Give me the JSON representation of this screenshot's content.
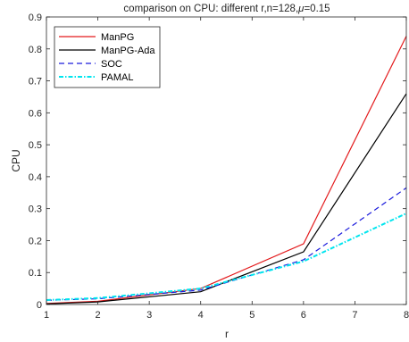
{
  "chart_data": {
    "type": "line",
    "title_prefix": "comparison on CPU: different r,n=128,",
    "title_mu": "μ",
    "title_suffix": "=0.15",
    "xlabel": "r",
    "ylabel": "CPU",
    "xlim": [
      1,
      8
    ],
    "ylim": [
      0,
      0.9
    ],
    "xticks": [
      "1",
      "2",
      "3",
      "4",
      "5",
      "6",
      "7",
      "8"
    ],
    "yticks": [
      "0",
      "0.1",
      "0.2",
      "0.3",
      "0.4",
      "0.5",
      "0.6",
      "0.7",
      "0.8",
      "0.9"
    ],
    "x": [
      1,
      2,
      4,
      6,
      8
    ],
    "grid": false,
    "legend_position": "top-left",
    "series": [
      {
        "name": "ManPG",
        "values": [
          0.003,
          0.01,
          0.05,
          0.19,
          0.84
        ],
        "color": "#e31a1c",
        "dash": ""
      },
      {
        "name": "ManPG-Ada",
        "values": [
          0.002,
          0.008,
          0.04,
          0.165,
          0.66
        ],
        "color": "#000000",
        "dash": ""
      },
      {
        "name": "SOC",
        "values": [
          0.013,
          0.018,
          0.045,
          0.14,
          0.365
        ],
        "color": "#1a1adc",
        "dash": "6,4"
      },
      {
        "name": "PAMAL",
        "values": [
          0.014,
          0.02,
          0.05,
          0.135,
          0.285
        ],
        "color": "#00e5ee",
        "dash": "5,2,1.5,2"
      }
    ]
  }
}
